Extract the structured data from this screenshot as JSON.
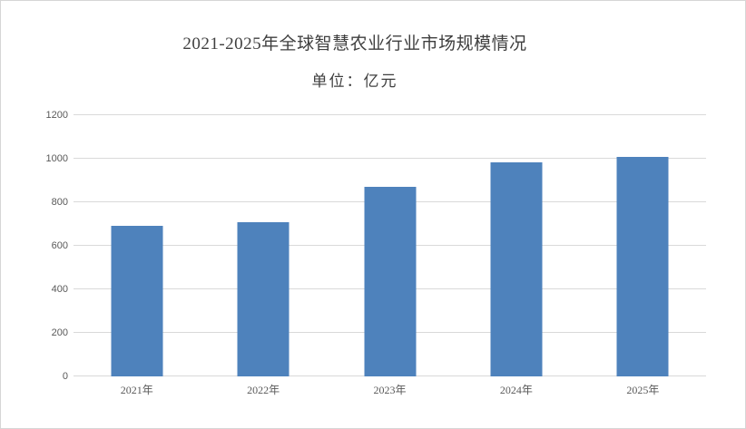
{
  "chart_data": {
    "type": "bar",
    "title": "2021-2025年全球智慧农业行业市场规模情况",
    "subtitle": "单位：亿元",
    "categories": [
      "2021年",
      "2022年",
      "2023年",
      "2024年",
      "2025年"
    ],
    "values": [
      690,
      710,
      870,
      985,
      1010
    ],
    "ylim": [
      0,
      1200
    ],
    "ytick_step": 200,
    "yticks": [
      0,
      200,
      400,
      600,
      800,
      1000,
      1200
    ],
    "grid": true,
    "legend_position": "none",
    "bar_color": "#4e82bc",
    "gridline_color": "#d9d9d9",
    "axis_text_color": "#595959",
    "title_color": "#3f3f3f"
  }
}
